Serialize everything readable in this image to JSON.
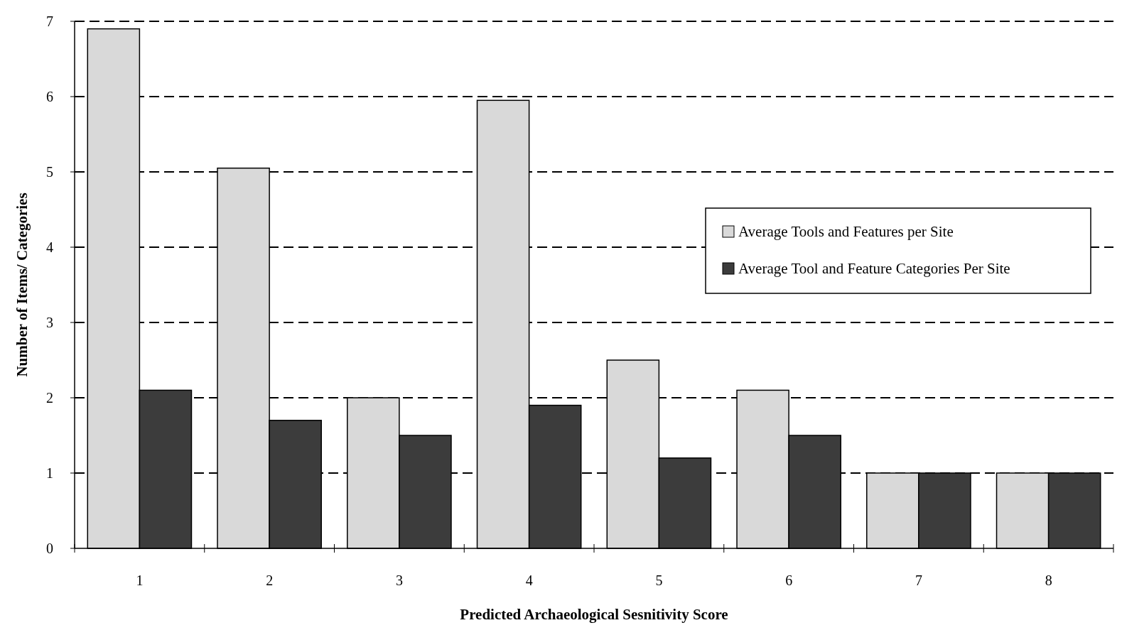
{
  "chart_data": {
    "type": "bar",
    "xlabel": "Predicted Archaeological Sesnitivity Score",
    "ylabel": "Number of Items/ Categories",
    "categories": [
      "1",
      "2",
      "3",
      "4",
      "5",
      "6",
      "7",
      "8"
    ],
    "series": [
      {
        "name": "Average Tools and Features per Site",
        "color": "#d9d9d9",
        "values": [
          6.9,
          5.05,
          2.0,
          5.95,
          2.5,
          2.1,
          1.0,
          1.0
        ]
      },
      {
        "name": "Average Tool and Feature Categories Per Site",
        "color": "#3c3c3c",
        "values": [
          2.1,
          1.7,
          1.5,
          1.9,
          1.2,
          1.5,
          1.0,
          1.0
        ]
      }
    ],
    "ylim": [
      0,
      7
    ],
    "yticks": [
      0,
      1,
      2,
      3,
      4,
      5,
      6,
      7
    ],
    "grid": "y",
    "legend": "right",
    "line_style": "dashed"
  }
}
